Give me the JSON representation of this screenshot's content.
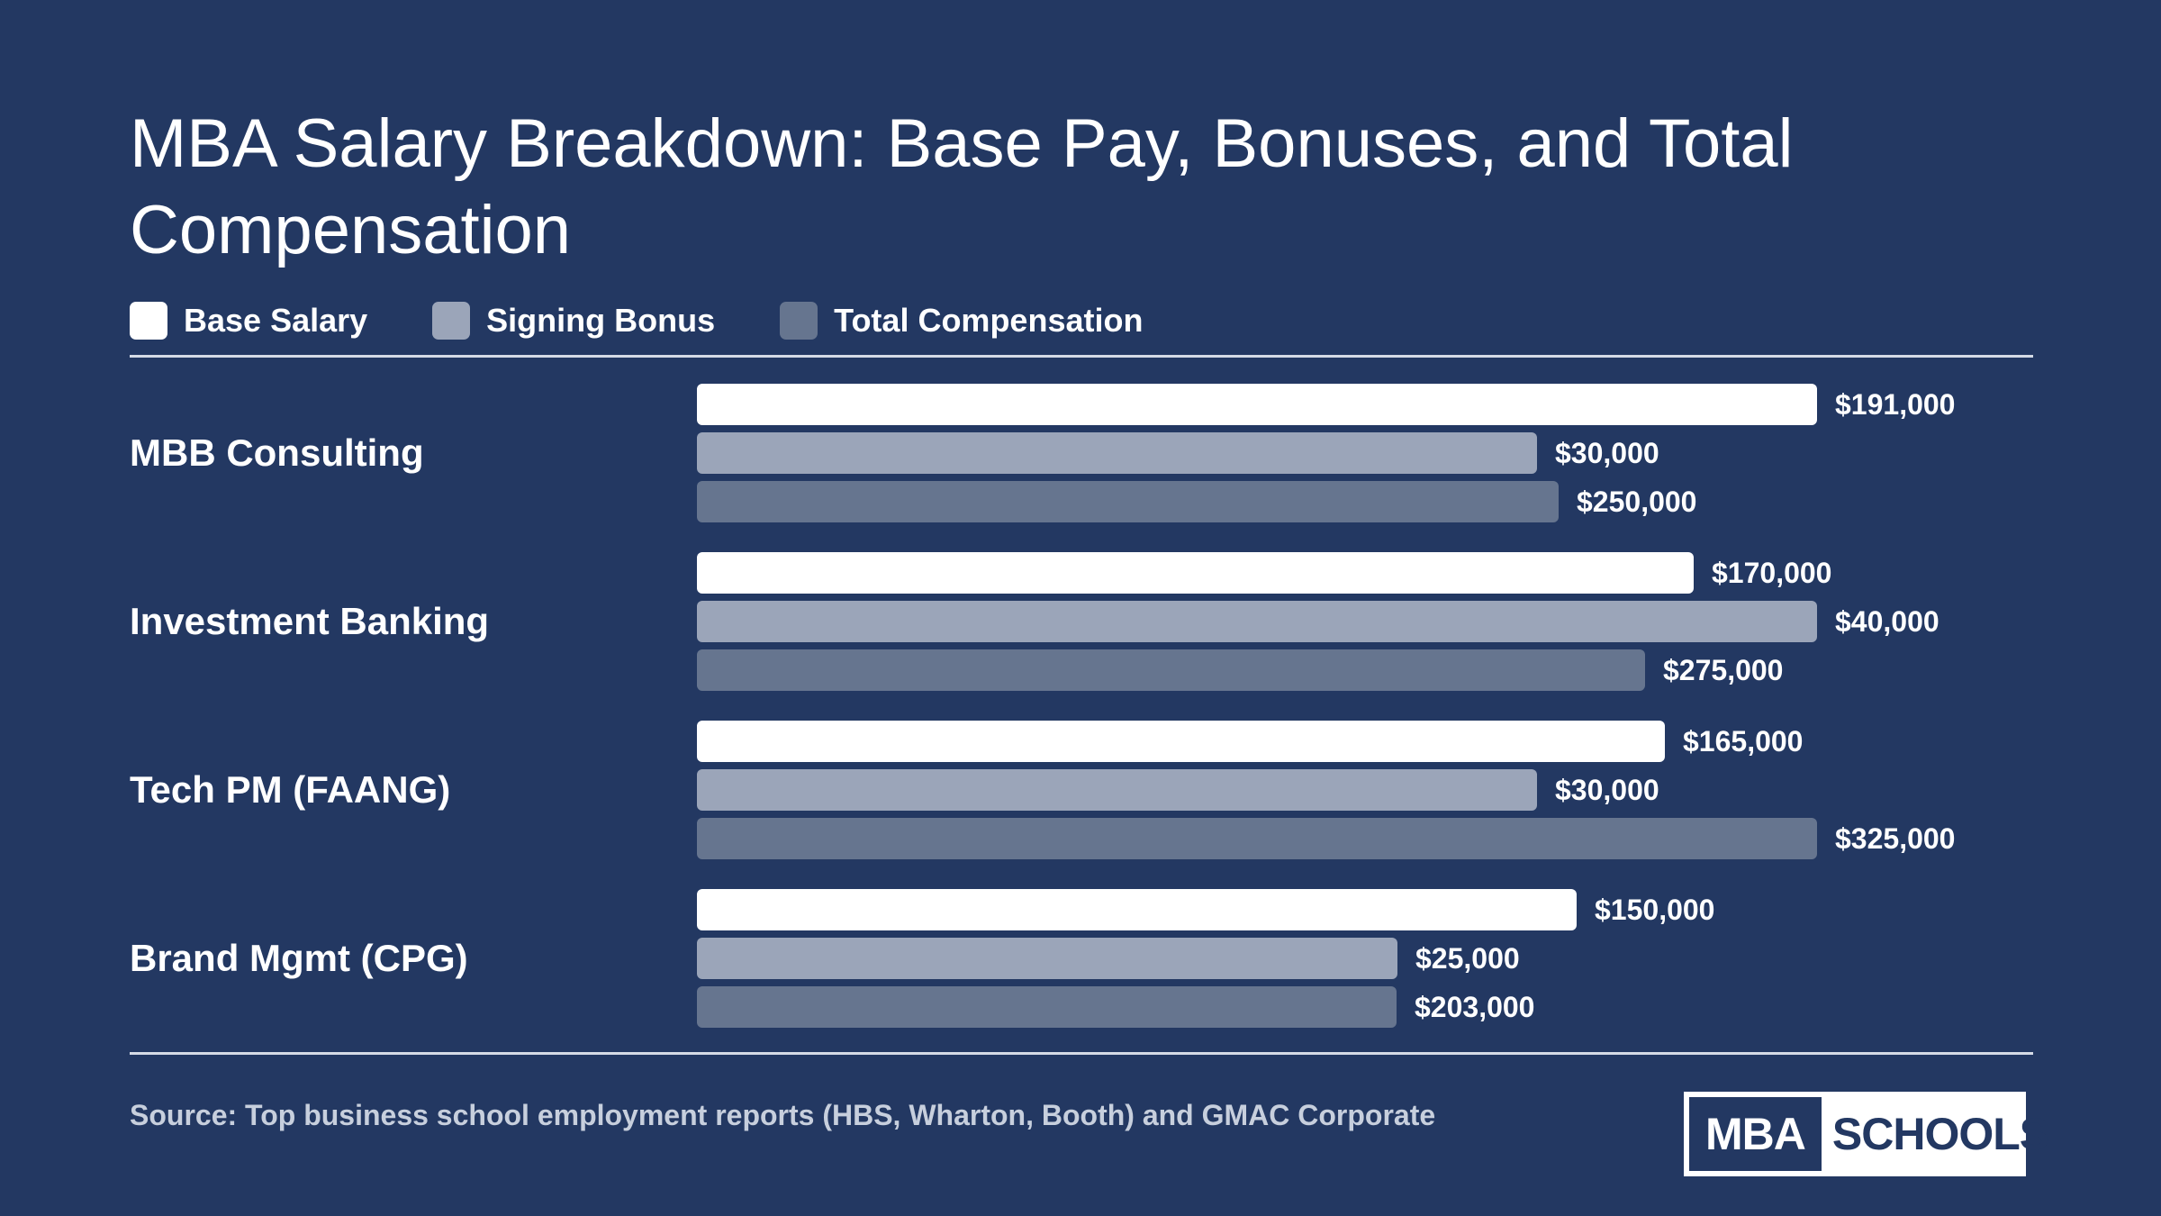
{
  "colors": {
    "background": "#233862",
    "base": "#ffffff",
    "signing": "#9ba5b9",
    "total": "#66758f"
  },
  "title": "MBA Salary Breakdown: Base Pay, Bonuses, and Total Compensation",
  "legend": [
    {
      "label": "Base Salary",
      "color": "#ffffff"
    },
    {
      "label": "Signing Bonus",
      "color": "#9ba5b9"
    },
    {
      "label": "Total Compensation",
      "color": "#66758f"
    }
  ],
  "source": "Source: Top business school employment reports (HBS, Wharton, Booth) and GMAC Corporate",
  "logo": {
    "left": "MBA",
    "right": "SCHOOLS"
  },
  "chart_data": {
    "type": "bar",
    "orientation": "horizontal",
    "categories": [
      "MBB Consulting",
      "Investment Banking",
      "Tech PM (FAANG)",
      "Brand Mgmt (CPG)"
    ],
    "series": [
      {
        "name": "Base Salary",
        "values": [
          191000,
          170000,
          165000,
          150000
        ],
        "labels": [
          "$191,000",
          "$170,000",
          "$165,000",
          "$150,000"
        ],
        "color": "#ffffff"
      },
      {
        "name": "Signing Bonus",
        "values": [
          30000,
          40000,
          30000,
          25000
        ],
        "labels": [
          "$30,000",
          "$40,000",
          "$30,000",
          "$25,000"
        ],
        "color": "#9ba5b9"
      },
      {
        "name": "Total Compensation",
        "values": [
          250000,
          275000,
          325000,
          203000
        ],
        "labels": [
          "$250,000",
          "$275,000",
          "$325,000",
          "$203,000"
        ],
        "color": "#66758f"
      }
    ],
    "scaling": "each series scaled to its own maximum",
    "legend_position": "top-left",
    "grid": false
  }
}
